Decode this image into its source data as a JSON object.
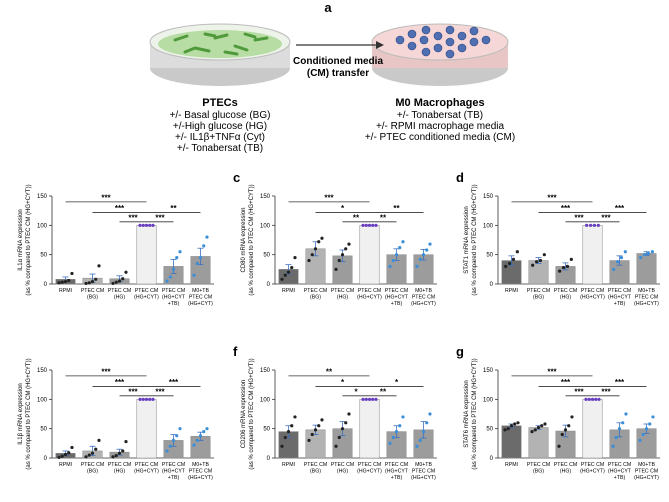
{
  "panel_a": {
    "label": "a",
    "arrow_text": [
      "Conditioned media",
      "(CM) transfer"
    ],
    "left_title": "PTECs",
    "left_lines": [
      "+/- Basal glucose (BG)",
      "+/-High glucose (HG)",
      "+/- IL1β+TNFα (Cyt)",
      "+/- Tonabersat (TB)"
    ],
    "right_title": "M0 Macrophages",
    "right_lines": [
      "+/- Tonabersat (TB)",
      "+/- RPMI macrophage media",
      "+/- PTEC conditioned media (CM)"
    ]
  },
  "chart_data": [
    {
      "type": "bar",
      "ylabel": "IL1α mRNA expression",
      "ylabel2": "(as % compared to PTEC CM (HG+CYT))",
      "categories": [
        "RPMI",
        "PTEC CM\n(BG)",
        "PTEC CM\n(HG)",
        "PTEC CM\n(HG+CYT)",
        "PTEC CM\n(HG+CYT\n+TB)",
        "M0+TB\nPTEC CM\n(HG+CYT)"
      ],
      "values": [
        8,
        10,
        9,
        100,
        30,
        47
      ],
      "errors": [
        4,
        7,
        5,
        0,
        12,
        14
      ],
      "points": [
        [
          2,
          3,
          4,
          6,
          18
        ],
        [
          1,
          2,
          4,
          8,
          31
        ],
        [
          1,
          3,
          5,
          9,
          20
        ],
        [
          100,
          100,
          100,
          100,
          100
        ],
        [
          5,
          12,
          25,
          45,
          55
        ],
        [
          15,
          35,
          45,
          65,
          80
        ]
      ],
      "colors": [
        "#6b6b6b",
        "#b3b3b3",
        "#9c9c9c",
        "#f0f0f0",
        "#9c9c9c",
        "#9c9c9c"
      ],
      "point_colors": [
        "#222222",
        "#222222",
        "#222222",
        "#6a3fbf",
        "#3a8fd8",
        "#3a8fd8"
      ],
      "ylim": [
        0,
        150
      ],
      "yticks": [
        0,
        50,
        100,
        150
      ],
      "comparisons": [
        {
          "from": 0,
          "to": 3,
          "label": "***"
        },
        {
          "from": 1,
          "to": 3,
          "label": "***"
        },
        {
          "from": 3,
          "to": 5,
          "label": "**"
        },
        {
          "from": 2,
          "to": 3,
          "label": "***"
        },
        {
          "from": 3,
          "to": 4,
          "label": "***"
        }
      ]
    },
    {
      "type": "bar",
      "label": "c",
      "ylabel": "CD80 mRNA expression",
      "ylabel2": "(as % compared to PTEC CM (HG+CYT))",
      "categories": [
        "RPMI",
        "PTEC CM\n(BG)",
        "PTEC CM\n(HG)",
        "PTEC CM\n(HG+CYT)",
        "PTEC CM\n(HG+CYT\n+TB)",
        "M0+TB\nPTEC CM\n(HG+CYT)"
      ],
      "values": [
        25,
        60,
        48,
        100,
        50,
        50
      ],
      "errors": [
        8,
        12,
        10,
        0,
        10,
        9
      ],
      "points": [
        [
          8,
          15,
          20,
          28,
          45
        ],
        [
          40,
          50,
          60,
          72,
          78
        ],
        [
          25,
          40,
          50,
          60,
          68
        ],
        [
          100,
          100,
          100,
          100,
          100
        ],
        [
          30,
          40,
          50,
          62,
          72
        ],
        [
          30,
          42,
          50,
          58,
          68
        ]
      ],
      "colors": [
        "#6b6b6b",
        "#b3b3b3",
        "#9c9c9c",
        "#f0f0f0",
        "#9c9c9c",
        "#9c9c9c"
      ],
      "point_colors": [
        "#222222",
        "#222222",
        "#222222",
        "#6a3fbf",
        "#3a8fd8",
        "#3a8fd8"
      ],
      "ylim": [
        0,
        150
      ],
      "yticks": [
        0,
        50,
        100,
        150
      ],
      "comparisons": [
        {
          "from": 0,
          "to": 3,
          "label": "***"
        },
        {
          "from": 1,
          "to": 3,
          "label": "*"
        },
        {
          "from": 3,
          "to": 5,
          "label": "**"
        },
        {
          "from": 2,
          "to": 3,
          "label": "**"
        },
        {
          "from": 3,
          "to": 4,
          "label": "**"
        }
      ]
    },
    {
      "type": "bar",
      "label": "d",
      "ylabel": "STAT1 mRNA expression",
      "ylabel2": "(as % compared to PTEC CM (HG+CYT))",
      "categories": [
        "RPMI",
        "PTEC CM\n(BG)",
        "PTEC CM\n(HG)",
        "PTEC CM\n(HG+CYT)",
        "PTEC CM\n(HG+CYT\n+TB)",
        "M0+TB\nPTEC CM\n(HG+CYT)"
      ],
      "values": [
        40,
        40,
        30,
        100,
        40,
        52
      ],
      "errors": [
        8,
        5,
        6,
        0,
        8,
        3
      ],
      "points": [
        [
          30,
          35,
          42,
          55
        ],
        [
          32,
          38,
          40,
          50
        ],
        [
          22,
          28,
          30,
          42
        ],
        [
          100,
          100,
          100,
          100
        ],
        [
          25,
          38,
          45,
          55
        ],
        [
          45,
          50,
          52,
          55
        ]
      ],
      "colors": [
        "#6b6b6b",
        "#b3b3b3",
        "#9c9c9c",
        "#f0f0f0",
        "#9c9c9c",
        "#9c9c9c"
      ],
      "point_colors": [
        "#222222",
        "#222222",
        "#222222",
        "#6a3fbf",
        "#3a8fd8",
        "#3a8fd8"
      ],
      "ylim": [
        0,
        150
      ],
      "yticks": [
        0,
        50,
        100,
        150
      ],
      "comparisons": [
        {
          "from": 0,
          "to": 3,
          "label": "***"
        },
        {
          "from": 1,
          "to": 3,
          "label": "***"
        },
        {
          "from": 3,
          "to": 5,
          "label": "***"
        },
        {
          "from": 2,
          "to": 3,
          "label": "***"
        },
        {
          "from": 3,
          "to": 4,
          "label": "***"
        }
      ]
    },
    {
      "type": "bar",
      "ylabel": "IL1β mRNA expression",
      "ylabel2": "(as % compared to PTEC CM (HG+CYT))",
      "categories": [
        "RPMI",
        "PTEC CM\n(BG)",
        "PTEC CM\n(HG)",
        "PTEC CM\n(HG+CYT)",
        "PTEC CM\n(HG+CYT\n+TB)",
        "M0+TB\nPTEC CM\n(HG+CYT)"
      ],
      "values": [
        8,
        12,
        10,
        100,
        30,
        37
      ],
      "errors": [
        4,
        8,
        5,
        0,
        10,
        7
      ],
      "points": [
        [
          1,
          3,
          6,
          9,
          18
        ],
        [
          2,
          5,
          8,
          15,
          30
        ],
        [
          2,
          4,
          8,
          12,
          28
        ],
        [
          100,
          100,
          100,
          100,
          100
        ],
        [
          12,
          20,
          30,
          38,
          50
        ],
        [
          22,
          30,
          38,
          45,
          50
        ]
      ],
      "colors": [
        "#6b6b6b",
        "#b3b3b3",
        "#9c9c9c",
        "#f0f0f0",
        "#9c9c9c",
        "#9c9c9c"
      ],
      "point_colors": [
        "#222222",
        "#222222",
        "#222222",
        "#6a3fbf",
        "#3a8fd8",
        "#3a8fd8"
      ],
      "ylim": [
        0,
        150
      ],
      "yticks": [
        0,
        50,
        100,
        150
      ],
      "comparisons": [
        {
          "from": 0,
          "to": 3,
          "label": "***"
        },
        {
          "from": 1,
          "to": 3,
          "label": "***"
        },
        {
          "from": 3,
          "to": 5,
          "label": "***"
        },
        {
          "from": 2,
          "to": 3,
          "label": "***"
        },
        {
          "from": 3,
          "to": 4,
          "label": "***"
        }
      ]
    },
    {
      "type": "bar",
      "label": "f",
      "ylabel": "CD206 mRNA expression",
      "ylabel2": "(as % compared to PTEC CM (HG+CYT))",
      "categories": [
        "RPMI",
        "PTEC CM\n(BG)",
        "PTEC CM\n(HG)",
        "PTEC CM\n(HG+CYT)",
        "PTEC CM\n(HG+CYT\n+TB)",
        "M0+TB\nPTEC CM\n(HG+CYT)"
      ],
      "values": [
        45,
        48,
        50,
        100,
        45,
        48
      ],
      "errors": [
        10,
        8,
        12,
        0,
        10,
        14
      ],
      "points": [
        [
          20,
          35,
          45,
          55,
          70
        ],
        [
          30,
          40,
          48,
          55,
          65
        ],
        [
          20,
          35,
          50,
          60,
          75
        ],
        [
          100,
          100,
          100,
          100,
          100
        ],
        [
          25,
          35,
          45,
          55,
          70
        ],
        [
          20,
          30,
          45,
          60,
          75
        ]
      ],
      "colors": [
        "#6b6b6b",
        "#b3b3b3",
        "#9c9c9c",
        "#f0f0f0",
        "#9c9c9c",
        "#9c9c9c"
      ],
      "point_colors": [
        "#222222",
        "#222222",
        "#222222",
        "#6a3fbf",
        "#3a8fd8",
        "#3a8fd8"
      ],
      "ylim": [
        0,
        150
      ],
      "yticks": [
        0,
        50,
        100,
        150
      ],
      "comparisons": [
        {
          "from": 0,
          "to": 3,
          "label": "**"
        },
        {
          "from": 1,
          "to": 3,
          "label": "*"
        },
        {
          "from": 3,
          "to": 5,
          "label": "*"
        },
        {
          "from": 2,
          "to": 3,
          "label": "*"
        },
        {
          "from": 3,
          "to": 4,
          "label": "**"
        }
      ]
    },
    {
      "type": "bar",
      "label": "g",
      "ylabel": "STAT6 mRNA expression",
      "ylabel2": "(as % compared to PTEC CM (HG+CYT))",
      "categories": [
        "RPMI",
        "PTEC CM\n(BG)",
        "PTEC CM\n(HG)",
        "PTEC CM\n(HG+CYT)",
        "PTEC CM\n(HG+CYT\n+TB)",
        "M0+TB\nPTEC CM\n(HG+CYT)"
      ],
      "values": [
        55,
        52,
        46,
        100,
        48,
        50
      ],
      "errors": [
        3,
        3,
        10,
        0,
        12,
        8
      ],
      "points": [
        [
          48,
          50,
          55,
          58,
          60
        ],
        [
          45,
          48,
          52,
          55,
          58
        ],
        [
          20,
          40,
          48,
          55,
          70
        ],
        [
          100,
          100,
          100,
          100,
          100
        ],
        [
          20,
          35,
          50,
          60,
          75
        ],
        [
          30,
          40,
          50,
          58,
          70
        ]
      ],
      "colors": [
        "#6b6b6b",
        "#b3b3b3",
        "#9c9c9c",
        "#f0f0f0",
        "#9c9c9c",
        "#9c9c9c"
      ],
      "point_colors": [
        "#222222",
        "#222222",
        "#222222",
        "#6a3fbf",
        "#3a8fd8",
        "#3a8fd8"
      ],
      "ylim": [
        0,
        150
      ],
      "yticks": [
        0,
        50,
        100,
        150
      ],
      "comparisons": [
        {
          "from": 0,
          "to": 3,
          "label": "***"
        },
        {
          "from": 1,
          "to": 3,
          "label": "***"
        },
        {
          "from": 3,
          "to": 5,
          "label": "***"
        },
        {
          "from": 2,
          "to": 3,
          "label": "***"
        },
        {
          "from": 3,
          "to": 4,
          "label": "***"
        }
      ]
    }
  ]
}
